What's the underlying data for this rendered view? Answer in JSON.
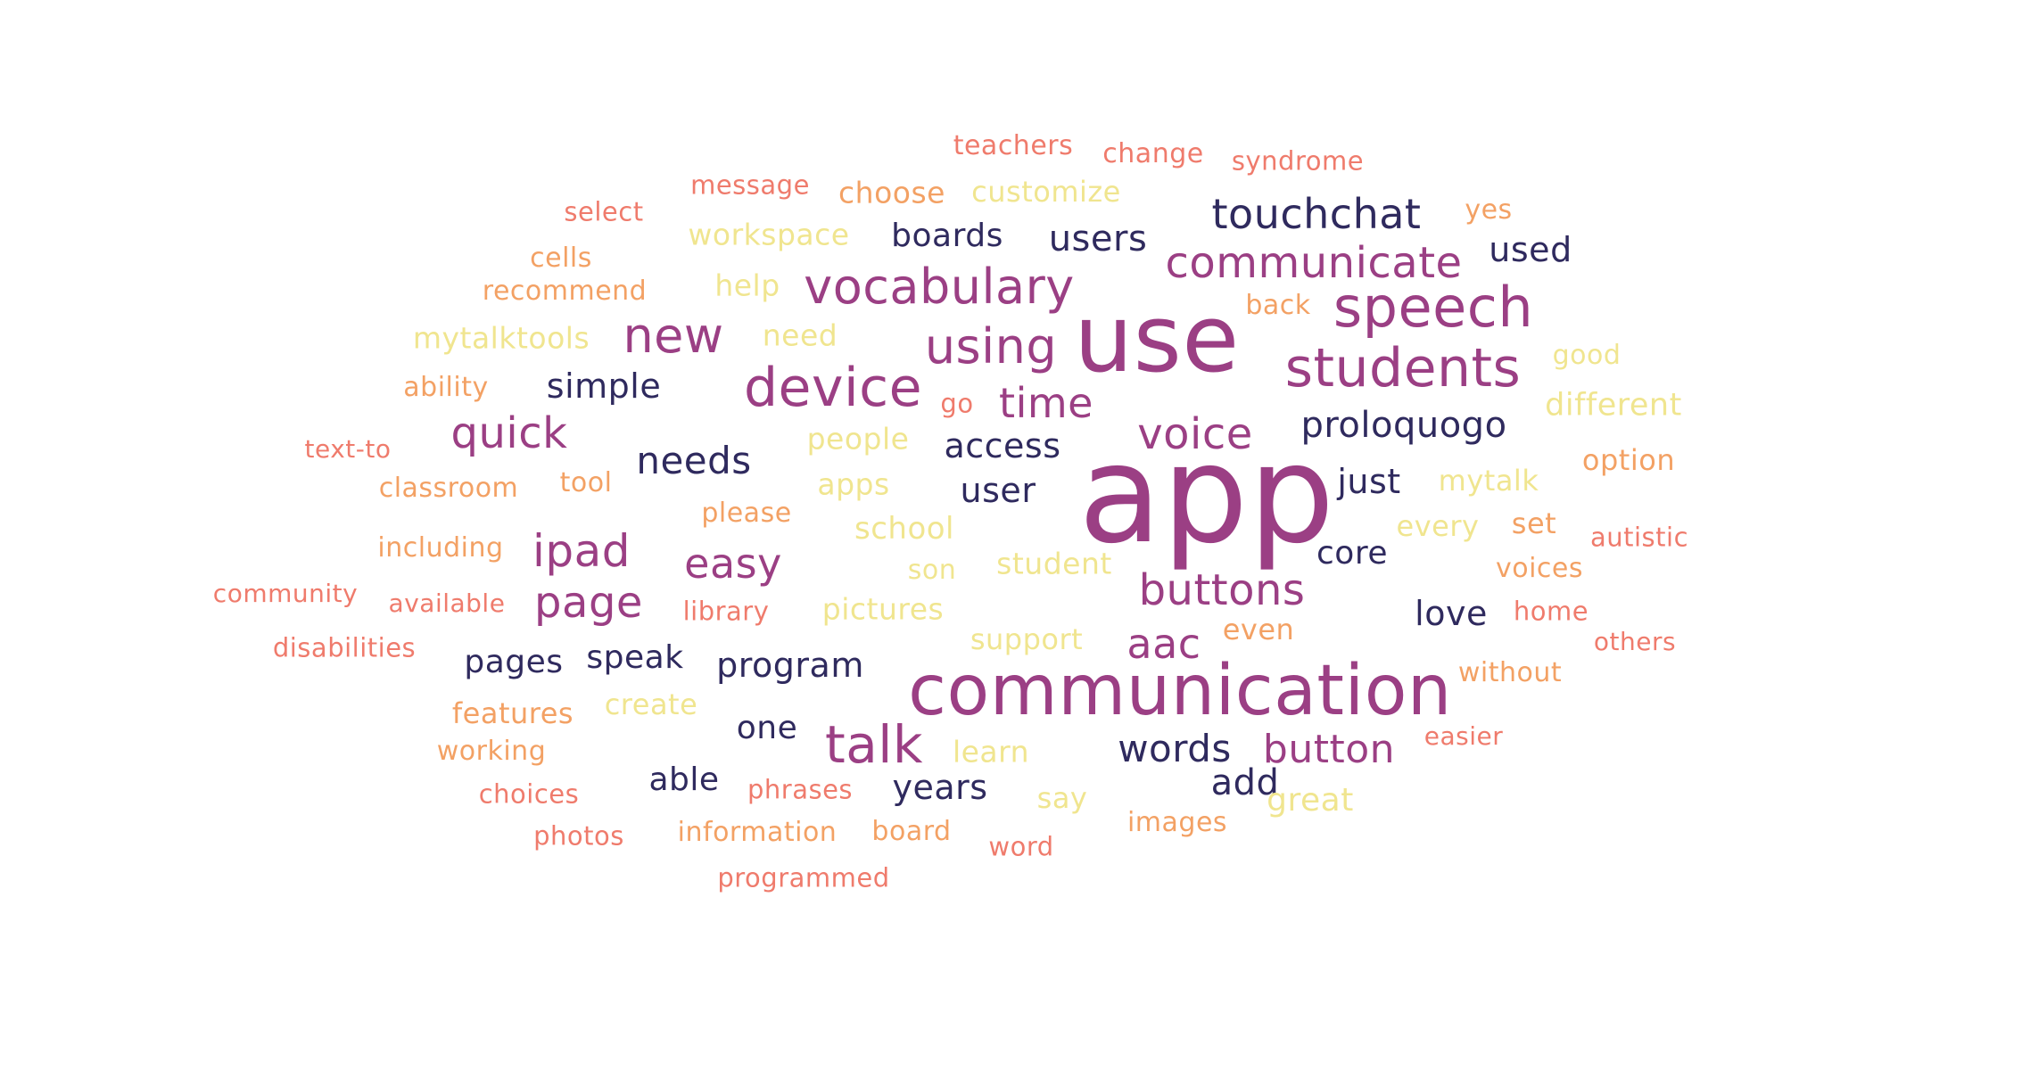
{
  "colors": {
    "navy": "#2f2a5e",
    "plum": "#9b3f84",
    "salmon": "#ef7b6c",
    "orange": "#f3a164",
    "cream": "#f0e58f"
  },
  "words": [
    {
      "text": "app",
      "color": "plum"
    },
    {
      "text": "use",
      "color": "plum"
    },
    {
      "text": "communication",
      "color": "plum"
    },
    {
      "text": "speech",
      "color": "plum"
    },
    {
      "text": "students",
      "color": "plum"
    },
    {
      "text": "device",
      "color": "plum"
    },
    {
      "text": "vocabulary",
      "color": "plum"
    },
    {
      "text": "using",
      "color": "plum"
    },
    {
      "text": "talk",
      "color": "plum"
    },
    {
      "text": "new",
      "color": "plum"
    },
    {
      "text": "communicate",
      "color": "plum"
    },
    {
      "text": "voice",
      "color": "plum"
    },
    {
      "text": "time",
      "color": "plum"
    },
    {
      "text": "quick",
      "color": "plum"
    },
    {
      "text": "ipad",
      "color": "plum"
    },
    {
      "text": "page",
      "color": "plum"
    },
    {
      "text": "easy",
      "color": "plum"
    },
    {
      "text": "buttons",
      "color": "plum"
    },
    {
      "text": "button",
      "color": "plum"
    },
    {
      "text": "aac",
      "color": "plum"
    },
    {
      "text": "touchchat",
      "color": "navy"
    },
    {
      "text": "proloquogo",
      "color": "navy"
    },
    {
      "text": "users",
      "color": "navy"
    },
    {
      "text": "boards",
      "color": "navy"
    },
    {
      "text": "used",
      "color": "navy"
    },
    {
      "text": "simple",
      "color": "navy"
    },
    {
      "text": "needs",
      "color": "navy"
    },
    {
      "text": "access",
      "color": "navy"
    },
    {
      "text": "user",
      "color": "navy"
    },
    {
      "text": "just",
      "color": "navy"
    },
    {
      "text": "core",
      "color": "navy"
    },
    {
      "text": "love",
      "color": "navy"
    },
    {
      "text": "words",
      "color": "navy"
    },
    {
      "text": "add",
      "color": "navy"
    },
    {
      "text": "years",
      "color": "navy"
    },
    {
      "text": "one",
      "color": "navy"
    },
    {
      "text": "able",
      "color": "navy"
    },
    {
      "text": "pages",
      "color": "navy"
    },
    {
      "text": "speak",
      "color": "navy"
    },
    {
      "text": "program",
      "color": "navy"
    },
    {
      "text": "teachers",
      "color": "salmon"
    },
    {
      "text": "change",
      "color": "salmon"
    },
    {
      "text": "syndrome",
      "color": "salmon"
    },
    {
      "text": "message",
      "color": "salmon"
    },
    {
      "text": "select",
      "color": "salmon"
    },
    {
      "text": "text-to",
      "color": "salmon"
    },
    {
      "text": "community",
      "color": "salmon"
    },
    {
      "text": "available",
      "color": "salmon"
    },
    {
      "text": "disabilities",
      "color": "salmon"
    },
    {
      "text": "library",
      "color": "salmon"
    },
    {
      "text": "go",
      "color": "salmon"
    },
    {
      "text": "autistic",
      "color": "salmon"
    },
    {
      "text": "home",
      "color": "salmon"
    },
    {
      "text": "others",
      "color": "salmon"
    },
    {
      "text": "easier",
      "color": "salmon"
    },
    {
      "text": "choices",
      "color": "salmon"
    },
    {
      "text": "photos",
      "color": "salmon"
    },
    {
      "text": "phrases",
      "color": "salmon"
    },
    {
      "text": "word",
      "color": "salmon"
    },
    {
      "text": "programmed",
      "color": "salmon"
    },
    {
      "text": "choose",
      "color": "orange"
    },
    {
      "text": "yes",
      "color": "orange"
    },
    {
      "text": "cells",
      "color": "orange"
    },
    {
      "text": "recommend",
      "color": "orange"
    },
    {
      "text": "back",
      "color": "orange"
    },
    {
      "text": "ability",
      "color": "orange"
    },
    {
      "text": "classroom",
      "color": "orange"
    },
    {
      "text": "tool",
      "color": "orange"
    },
    {
      "text": "please",
      "color": "orange"
    },
    {
      "text": "option",
      "color": "orange"
    },
    {
      "text": "including",
      "color": "orange"
    },
    {
      "text": "set",
      "color": "orange"
    },
    {
      "text": "voices",
      "color": "orange"
    },
    {
      "text": "even",
      "color": "orange"
    },
    {
      "text": "without",
      "color": "orange"
    },
    {
      "text": "features",
      "color": "orange"
    },
    {
      "text": "working",
      "color": "orange"
    },
    {
      "text": "information",
      "color": "orange"
    },
    {
      "text": "board",
      "color": "orange"
    },
    {
      "text": "images",
      "color": "orange"
    },
    {
      "text": "customize",
      "color": "cream"
    },
    {
      "text": "workspace",
      "color": "cream"
    },
    {
      "text": "help",
      "color": "cream"
    },
    {
      "text": "need",
      "color": "cream"
    },
    {
      "text": "mytalktools",
      "color": "cream"
    },
    {
      "text": "good",
      "color": "cream"
    },
    {
      "text": "different",
      "color": "cream"
    },
    {
      "text": "people",
      "color": "cream"
    },
    {
      "text": "apps",
      "color": "cream"
    },
    {
      "text": "mytalk",
      "color": "cream"
    },
    {
      "text": "school",
      "color": "cream"
    },
    {
      "text": "every",
      "color": "cream"
    },
    {
      "text": "son",
      "color": "cream"
    },
    {
      "text": "student",
      "color": "cream"
    },
    {
      "text": "pictures",
      "color": "cream"
    },
    {
      "text": "support",
      "color": "cream"
    },
    {
      "text": "create",
      "color": "cream"
    },
    {
      "text": "learn",
      "color": "cream"
    },
    {
      "text": "say",
      "color": "cream"
    },
    {
      "text": "great",
      "color": "cream"
    }
  ]
}
